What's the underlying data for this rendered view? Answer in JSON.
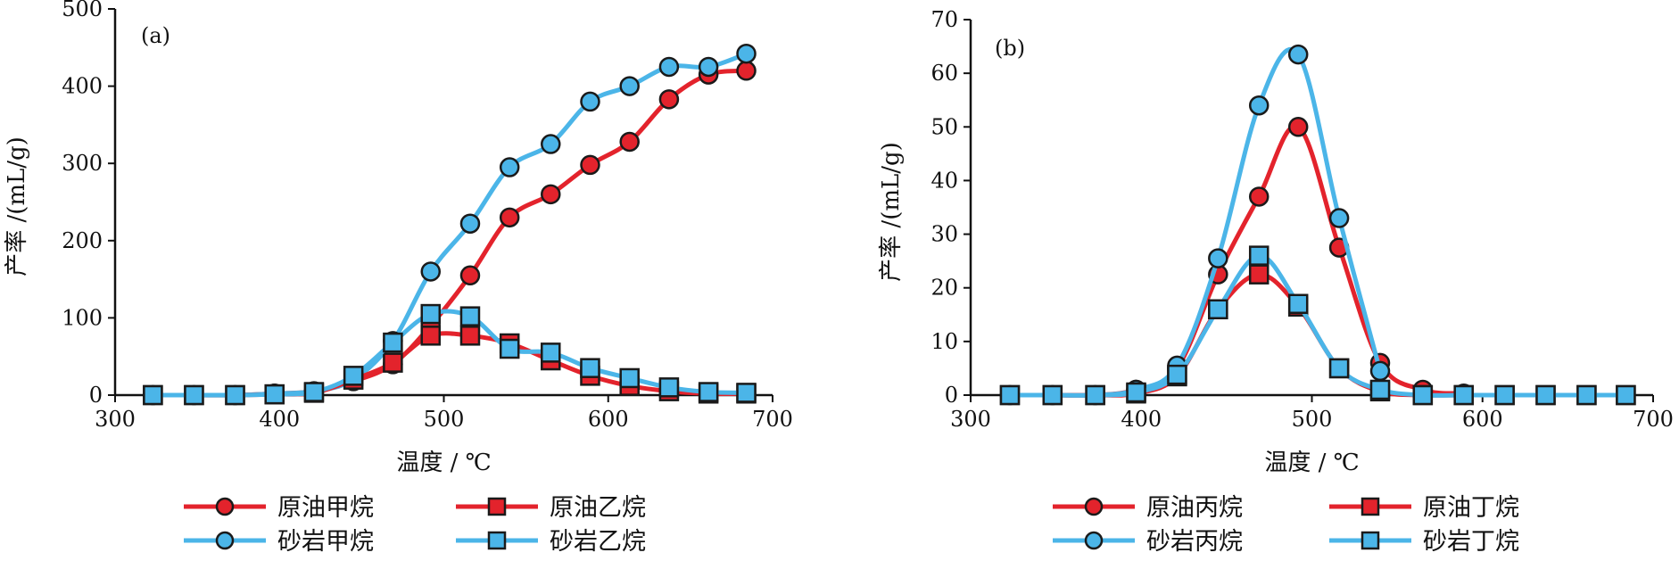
{
  "colors": {
    "red": "#e3232c",
    "blue": "#4bb5e8",
    "outline": "#1a1a1a"
  },
  "chart_data": [
    {
      "type": "line",
      "panel_label": "(a)",
      "xlabel": "温度 / ℃",
      "ylabel": "产率 /(mL/g)",
      "xlim": [
        300,
        700
      ],
      "ylim": [
        0,
        500
      ],
      "x_ticks": [
        "300",
        "400",
        "500",
        "600",
        "700"
      ],
      "y_ticks": [
        "0",
        "100",
        "200",
        "300",
        "400",
        "500"
      ],
      "x_tick_values": [
        300,
        400,
        500,
        600,
        700
      ],
      "y_tick_values": [
        0,
        100,
        200,
        300,
        400,
        500
      ],
      "grid": false,
      "legend_position": "bottom",
      "series": [
        {
          "name": "原油甲烷",
          "color": "red",
          "marker": "circle",
          "x": [
            323,
            348,
            373,
            397,
            421,
            445,
            469,
            492,
            516,
            540,
            565,
            589,
            613,
            637,
            661,
            684
          ],
          "y": [
            0,
            0,
            0,
            2,
            5,
            18,
            40,
            90,
            155,
            230,
            260,
            298,
            328,
            383,
            415,
            420
          ]
        },
        {
          "name": "砂岩甲烷",
          "color": "blue",
          "marker": "circle",
          "x": [
            323,
            348,
            373,
            397,
            421,
            445,
            469,
            492,
            516,
            540,
            565,
            589,
            613,
            637,
            661,
            684
          ],
          "y": [
            0,
            0,
            0,
            2,
            5,
            20,
            70,
            160,
            222,
            295,
            325,
            380,
            400,
            425,
            425,
            442
          ]
        },
        {
          "name": "原油乙烷",
          "color": "red",
          "marker": "square",
          "x": [
            323,
            348,
            373,
            397,
            421,
            445,
            469,
            492,
            516,
            540,
            565,
            589,
            613,
            637,
            661,
            684
          ],
          "y": [
            0,
            0,
            0,
            1,
            3,
            20,
            42,
            77,
            77,
            67,
            45,
            25,
            12,
            5,
            2,
            2
          ]
        },
        {
          "name": "砂岩乙烷",
          "color": "blue",
          "marker": "square",
          "x": [
            323,
            348,
            373,
            397,
            421,
            445,
            469,
            492,
            516,
            540,
            565,
            589,
            613,
            637,
            661,
            684
          ],
          "y": [
            0,
            0,
            0,
            1,
            4,
            25,
            68,
            105,
            102,
            60,
            55,
            35,
            22,
            10,
            4,
            3
          ]
        }
      ]
    },
    {
      "type": "line",
      "panel_label": "(b)",
      "xlabel": "温度 / ℃",
      "ylabel": "产率 /(mL/g)",
      "xlim": [
        300,
        700
      ],
      "ylim": [
        0,
        70
      ],
      "x_ticks": [
        "300",
        "400",
        "500",
        "600",
        "700"
      ],
      "y_ticks": [
        "0",
        "10",
        "20",
        "30",
        "40",
        "50",
        "60",
        "70"
      ],
      "x_tick_values": [
        300,
        400,
        500,
        600,
        700
      ],
      "y_tick_values": [
        0,
        10,
        20,
        30,
        40,
        50,
        60,
        70
      ],
      "grid": false,
      "legend_position": "bottom",
      "series": [
        {
          "name": "原油丙烷",
          "color": "red",
          "marker": "circle",
          "x": [
            323,
            348,
            373,
            397,
            421,
            445,
            469,
            492,
            516,
            540,
            565,
            589
          ],
          "y": [
            0,
            0,
            0,
            1,
            5,
            22.5,
            37,
            50,
            27.5,
            6,
            1,
            0.3
          ]
        },
        {
          "name": "砂岩丙烷",
          "color": "blue",
          "marker": "circle",
          "x": [
            323,
            348,
            373,
            397,
            421,
            445,
            469,
            492,
            516,
            540
          ],
          "y": [
            0,
            0,
            0,
            1,
            5.5,
            25.5,
            54,
            63.5,
            33,
            4.5
          ]
        },
        {
          "name": "原油丁烷",
          "color": "red",
          "marker": "square",
          "x": [
            323,
            348,
            373,
            397,
            421,
            445,
            469,
            492,
            516,
            540,
            565,
            589,
            613,
            637,
            661,
            684
          ],
          "y": [
            0,
            0,
            0,
            0.3,
            3.5,
            16,
            22.5,
            16.5,
            5,
            0.7,
            0,
            0,
            0,
            0,
            0,
            0
          ]
        },
        {
          "name": "砂岩丁烷",
          "color": "blue",
          "marker": "square",
          "x": [
            323,
            348,
            373,
            397,
            421,
            445,
            469,
            492,
            516,
            540,
            565,
            589,
            613,
            637,
            661,
            684
          ],
          "y": [
            0,
            0,
            0,
            0.5,
            3.8,
            16,
            26,
            17,
            5,
            1,
            0,
            0,
            0,
            0,
            0,
            0
          ]
        }
      ]
    }
  ]
}
